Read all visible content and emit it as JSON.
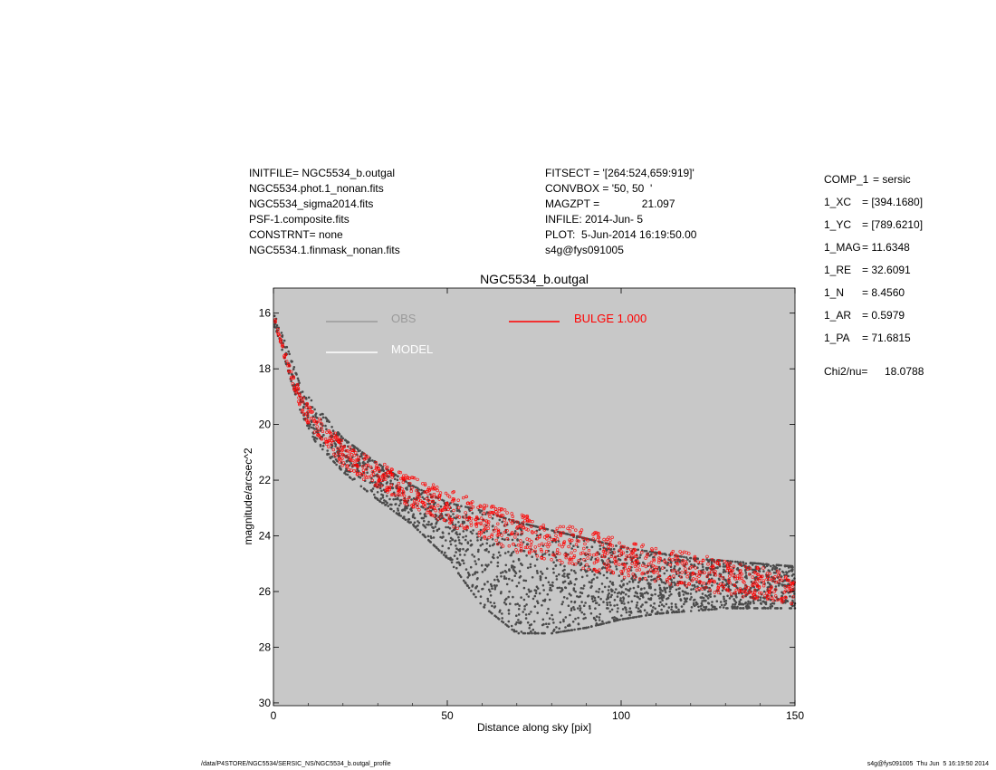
{
  "header_left": [
    "INITFILE= NGC5534_b.outgal",
    "NGC5534.phot.1_nonan.fits",
    "NGC5534_sigma2014.fits",
    "PSF-1.composite.fits",
    "CONSTRNT= none",
    "NGC5534.1.finmask_nonan.fits"
  ],
  "header_mid": [
    "FITSECT = '[264:524,659:919]'",
    "CONVBOX = '50, 50  '",
    "MAGZPT =              21.097",
    "INFILE: 2014-Jun- 5",
    "PLOT:  5-Jun-2014 16:19:50.00",
    "s4g@fys091005"
  ],
  "params": [
    {
      "key": "COMP_1",
      "value": "= sersic"
    },
    {
      "key": "1_XC",
      "value": "= [394.1680]"
    },
    {
      "key": "1_YC",
      "value": "= [789.6210]"
    },
    {
      "key": "1_MAG",
      "value": "= 11.6348"
    },
    {
      "key": "1_RE",
      "value": "= 32.6091"
    },
    {
      "key": "1_N",
      "value": "= 8.4560"
    },
    {
      "key": "1_AR",
      "value": "= 0.5979"
    },
    {
      "key": "1_PA",
      "value": "= 71.6815"
    }
  ],
  "chi2": {
    "key": "Chi2/nu=",
    "value": "18.0788"
  },
  "footer_left": "/data/P4STORE/NGC5534/SERSIC_NS/NGC5534_b.outgal_profile",
  "footer_right": "s4g@fys091005  Thu Jun  5 16:19:50 2014",
  "colors": {
    "background": "#c8c8c8",
    "obs": "#4a4a4a",
    "model": "#ffffff",
    "bulge": "#ff0000",
    "obs_legend": "#9a9a9a"
  },
  "chart_data": {
    "type": "scatter",
    "title": "NGC5534_b.outgal",
    "xlabel": "Distance along sky [pix]",
    "ylabel": "magnitude/arcsec^2",
    "xlim": [
      0,
      150
    ],
    "ylim": [
      30.1,
      15.1
    ],
    "y_inverted": true,
    "xticks": [
      0,
      50,
      100,
      150
    ],
    "yticks": [
      16,
      18,
      20,
      22,
      24,
      26,
      28,
      30
    ],
    "legend": [
      {
        "name": "OBS",
        "color": "#9a9a9a"
      },
      {
        "name": "MODEL",
        "color": "#ffffff"
      },
      {
        "name": "BULGE  1.000",
        "color": "#ff0000"
      }
    ],
    "series": [
      {
        "name": "OBS",
        "kind": "scatter-band",
        "x": [
          0.5,
          2,
          5,
          8,
          12,
          20,
          30,
          40,
          50,
          60,
          70,
          80,
          90,
          100,
          110,
          120,
          130,
          140,
          150
        ],
        "ymin": [
          16.1,
          16.6,
          17.6,
          18.7,
          19.3,
          20.5,
          21.4,
          22.2,
          22.8,
          23.1,
          23.5,
          23.8,
          24.1,
          24.4,
          24.6,
          24.8,
          24.9,
          25.0,
          25.1
        ],
        "ymax": [
          16.5,
          17.1,
          18.4,
          19.6,
          20.6,
          21.7,
          22.7,
          23.6,
          24.8,
          26.5,
          27.5,
          27.5,
          27.3,
          27.0,
          26.8,
          26.7,
          26.6,
          26.6,
          26.6
        ]
      },
      {
        "name": "BULGE  1.000",
        "kind": "model-band",
        "x": [
          0.5,
          2,
          5,
          8,
          10,
          20,
          30,
          40,
          50,
          60,
          70,
          80,
          90,
          100,
          110,
          120,
          130,
          140,
          150
        ],
        "ymin": [
          16.2,
          16.9,
          18.0,
          18.9,
          19.3,
          20.6,
          21.3,
          21.9,
          22.3,
          22.8,
          23.2,
          23.5,
          23.8,
          24.1,
          24.4,
          24.6,
          24.9,
          25.1,
          25.4
        ],
        "ymax": [
          16.3,
          17.1,
          18.4,
          19.5,
          20.0,
          21.5,
          22.3,
          23.0,
          23.6,
          24.1,
          24.6,
          24.9,
          25.2,
          25.5,
          25.7,
          25.9,
          26.1,
          26.3,
          26.5
        ]
      }
    ]
  }
}
